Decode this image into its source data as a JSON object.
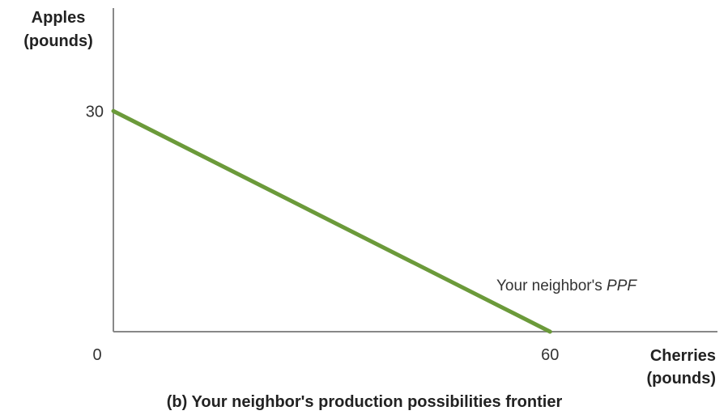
{
  "chart_data": {
    "type": "line",
    "title": "(b) Your neighbor's production possibilities frontier",
    "ylabel_lines": [
      "Apples",
      "(pounds)"
    ],
    "xlabel_lines": [
      "Cherries",
      "(pounds)"
    ],
    "origin_label": "0",
    "xticks": [
      60
    ],
    "yticks": [
      30
    ],
    "xlim": [
      0,
      83
    ],
    "ylim": [
      0,
      44
    ],
    "grid": false,
    "series": [
      {
        "x": [
          0,
          60
        ],
        "y": [
          30,
          0
        ],
        "color": "#6b9a3a"
      }
    ],
    "annotation": {
      "prefix": "Your neighbor's ",
      "italic": "PPF"
    }
  }
}
